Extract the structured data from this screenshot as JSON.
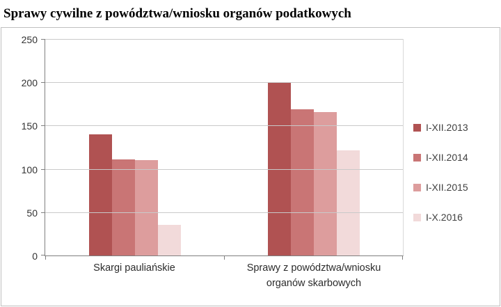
{
  "title": "Sprawy cywilne z powództwa/wniosku organów podatkowych",
  "chart_data": {
    "type": "bar",
    "title": "Sprawy cywilne z powództwa/wniosku organów podatkowych",
    "categories": [
      "Skargi pauliańskie",
      "Sprawy z powództwa/wniosku\norganów skarbowych"
    ],
    "series": [
      {
        "name": "I-XII.2013",
        "color": "#b05252",
        "values": [
          140,
          200
        ]
      },
      {
        "name": "I-XII.2014",
        "color": "#c97575",
        "values": [
          111,
          169
        ]
      },
      {
        "name": "I-XII.2015",
        "color": "#dd9d9d",
        "values": [
          110,
          166
        ]
      },
      {
        "name": "I-X.2016",
        "color": "#f2dada",
        "values": [
          35,
          121
        ]
      }
    ],
    "ylim": [
      0,
      250
    ],
    "yticks": [
      0,
      50,
      100,
      150,
      200,
      250
    ],
    "grid": true,
    "legend_position": "right",
    "xlabel": "",
    "ylabel": ""
  },
  "colors": {
    "axis": "#7f7f7f",
    "gridline": "#c9c9c9",
    "frame_border": "#bfbfbf",
    "tick_text": "#333333"
  }
}
